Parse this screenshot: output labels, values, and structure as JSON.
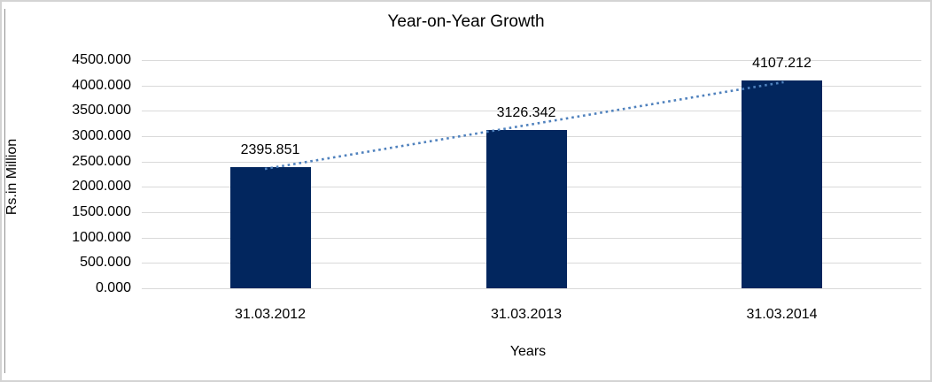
{
  "chart_data": {
    "type": "bar",
    "title": "Year-on-Year Growth",
    "xlabel": "Years",
    "ylabel": "Rs.in Million",
    "categories": [
      "31.03.2012",
      "31.03.2013",
      "31.03.2014"
    ],
    "values": [
      2395.851,
      3126.342,
      4107.212
    ],
    "data_labels": [
      "2395.851",
      "3126.342",
      "4107.212"
    ],
    "ylim": [
      0,
      4500
    ],
    "ytick_step": 500,
    "ytick_format_decimals": 3,
    "grid": true,
    "legend": "none",
    "bar_color": "#02265e",
    "gridline_color": "#d9d9d9",
    "trendline": {
      "type": "linear",
      "style": "dotted",
      "color": "#4f81bd"
    },
    "frame_border_color": "#d4d4d4"
  }
}
